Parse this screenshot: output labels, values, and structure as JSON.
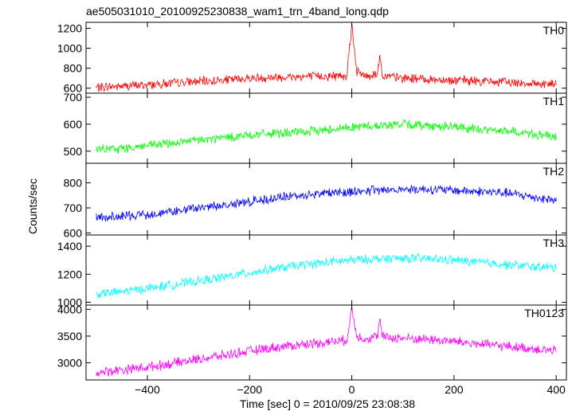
{
  "title": "ae505031010_20100925230838_wam1_trn_4band_long.qdp",
  "xlabel": "Time [sec] 0 = 2010/09/25 23:08:38",
  "ylabel": "Counts/sec",
  "colors": {
    "TH0": "#ff0000",
    "TH1": "#00ff00",
    "TH2": "#0000ff",
    "TH3": "#00ffff",
    "TH0123": "#ff00ff"
  },
  "chart_data": {
    "type": "line",
    "title": "ae505031010_20100925230838_wam1_trn_4band_long.qdp",
    "xlabel": "Time [sec] 0 = 2010/09/25 23:08:38",
    "ylabel": "Counts/sec",
    "xlim": [
      -520,
      420
    ],
    "x_ticks": [
      -400,
      -200,
      0,
      200,
      400
    ],
    "x_ticklabels": [
      "−400",
      "−200",
      "0",
      "200",
      "400"
    ],
    "grid": false,
    "panels": [
      {
        "name": "TH0",
        "color": "#ff0000",
        "ylim": [
          550,
          1260
        ],
        "y_ticks": [
          600,
          800,
          1000,
          1200
        ],
        "y_ticklabels": [
          "600",
          "800",
          "1000",
          "1200"
        ],
        "x": [
          -500,
          -450,
          -400,
          -350,
          -300,
          -250,
          -200,
          -150,
          -100,
          -50,
          -10,
          0,
          10,
          30,
          50,
          55,
          60,
          100,
          150,
          200,
          250,
          300,
          350,
          400
        ],
        "y": [
          610,
          620,
          635,
          650,
          665,
          680,
          700,
          710,
          715,
          720,
          730,
          1240,
          760,
          720,
          750,
          920,
          720,
          700,
          690,
          680,
          670,
          660,
          650,
          640
        ]
      },
      {
        "name": "TH1",
        "color": "#00ff00",
        "ylim": [
          455,
          715
        ],
        "y_ticks": [
          500,
          600,
          700
        ],
        "y_ticklabels": [
          "500",
          "600",
          "700"
        ],
        "x": [
          -500,
          -450,
          -400,
          -350,
          -300,
          -250,
          -200,
          -150,
          -100,
          -50,
          0,
          50,
          100,
          150,
          200,
          250,
          300,
          350,
          400
        ],
        "y": [
          505,
          510,
          520,
          530,
          540,
          550,
          560,
          565,
          570,
          580,
          590,
          595,
          600,
          595,
          590,
          580,
          575,
          565,
          550
        ]
      },
      {
        "name": "TH2",
        "color": "#0000ff",
        "ylim": [
          592,
          878
        ],
        "y_ticks": [
          600,
          700,
          800
        ],
        "y_ticklabels": [
          "600",
          "700",
          "800"
        ],
        "x": [
          -500,
          -450,
          -400,
          -350,
          -300,
          -250,
          -200,
          -150,
          -100,
          -50,
          0,
          50,
          100,
          150,
          200,
          250,
          300,
          350,
          400
        ],
        "y": [
          660,
          665,
          675,
          685,
          700,
          710,
          725,
          740,
          750,
          760,
          765,
          770,
          775,
          775,
          770,
          765,
          760,
          745,
          730
        ]
      },
      {
        "name": "TH3",
        "color": "#00ffff",
        "ylim": [
          980,
          1480
        ],
        "y_ticks": [
          1000,
          1200,
          1400
        ],
        "y_ticklabels": [
          "1000",
          "1200",
          "1400"
        ],
        "x": [
          -500,
          -450,
          -400,
          -350,
          -300,
          -250,
          -200,
          -150,
          -100,
          -50,
          0,
          50,
          100,
          150,
          200,
          250,
          300,
          350,
          400
        ],
        "y": [
          1060,
          1075,
          1100,
          1125,
          1150,
          1180,
          1210,
          1240,
          1265,
          1285,
          1300,
          1310,
          1315,
          1310,
          1300,
          1285,
          1270,
          1255,
          1245
        ]
      },
      {
        "name": "TH0123",
        "color": "#ff00ff",
        "ylim": [
          2680,
          4080
        ],
        "y_ticks": [
          3000,
          3500,
          4000
        ],
        "y_ticklabels": [
          "3000",
          "3500",
          "4000"
        ],
        "x": [
          -500,
          -450,
          -400,
          -350,
          -300,
          -250,
          -200,
          -150,
          -100,
          -50,
          -10,
          0,
          10,
          30,
          50,
          55,
          60,
          100,
          150,
          200,
          250,
          300,
          350,
          400
        ],
        "y": [
          2820,
          2870,
          2920,
          2990,
          3070,
          3140,
          3220,
          3290,
          3340,
          3390,
          3420,
          4000,
          3500,
          3450,
          3500,
          3800,
          3480,
          3460,
          3440,
          3400,
          3350,
          3310,
          3270,
          3220
        ]
      }
    ]
  }
}
